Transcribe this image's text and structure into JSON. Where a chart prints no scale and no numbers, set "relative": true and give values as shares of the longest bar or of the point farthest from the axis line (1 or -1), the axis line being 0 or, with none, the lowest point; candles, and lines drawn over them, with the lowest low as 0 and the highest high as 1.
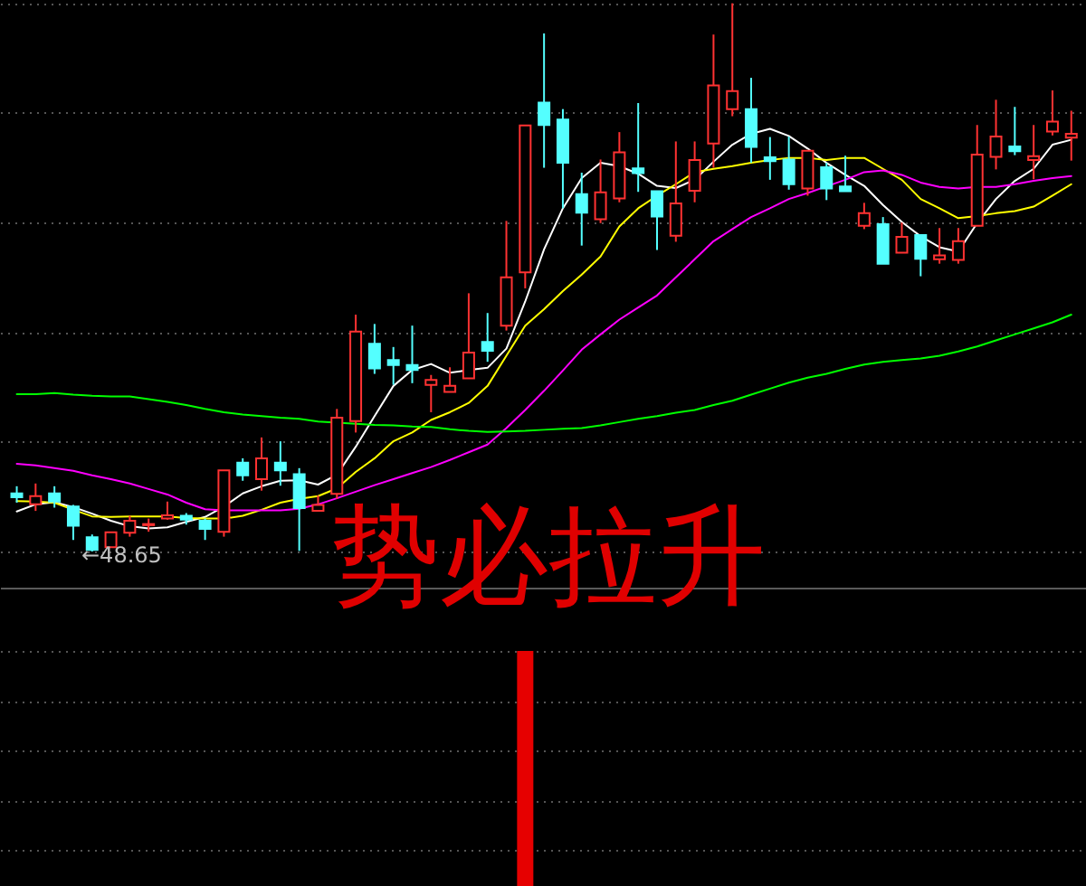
{
  "chart_data": [
    {
      "type": "candlestick",
      "relative": true,
      "grid": "y",
      "categories": [
        null,
        null,
        null,
        null,
        null,
        null,
        null,
        null,
        null,
        null,
        null,
        null,
        null,
        null,
        null,
        null,
        null,
        null,
        null,
        null,
        null,
        null,
        null,
        null,
        null,
        null,
        null,
        null,
        null,
        null,
        null,
        null,
        null,
        null,
        null,
        null,
        null,
        null,
        null,
        null,
        null,
        null,
        null,
        null,
        null,
        null,
        null,
        null,
        null,
        null,
        null,
        null,
        null,
        null,
        null,
        null,
        null
      ],
      "ohlc": [
        [
          0.106,
          0.119,
          0.089,
          0.099
        ],
        [
          0.086,
          0.124,
          0.074,
          0.101
        ],
        [
          0.106,
          0.119,
          0.08,
          0.091
        ],
        [
          0.082,
          0.085,
          0.021,
          0.047
        ],
        [
          0.026,
          0.031,
          0,
          0.003
        ],
        [
          0.008,
          0.035,
          0.008,
          0.035
        ],
        [
          0.034,
          0.065,
          0.027,
          0.056
        ],
        [
          0.048,
          0.06,
          0.036,
          0.05
        ],
        [
          0.06,
          0.091,
          0.058,
          0.066
        ],
        [
          0.065,
          0.07,
          0.049,
          0.058
        ],
        [
          0.056,
          0.06,
          0.021,
          0.041
        ],
        [
          0.036,
          0.148,
          0.027,
          0.148
        ],
        [
          0.162,
          0.17,
          0.129,
          0.139
        ],
        [
          0.132,
          0.208,
          0.111,
          0.17
        ],
        [
          0.162,
          0.201,
          0.12,
          0.148
        ],
        [
          0.141,
          0.152,
          0.001,
          0.079
        ],
        [
          0.074,
          0.102,
          0.074,
          0.085
        ],
        [
          0.105,
          0.26,
          0.096,
          0.244
        ],
        [
          0.238,
          0.432,
          0.217,
          0.401
        ],
        [
          0.379,
          0.415,
          0.324,
          0.334
        ],
        [
          0.349,
          0.373,
          0.304,
          0.34
        ],
        [
          0.34,
          0.412,
          0.307,
          0.331
        ],
        [
          0.304,
          0.322,
          0.254,
          0.313
        ],
        [
          0.291,
          0.336,
          0.291,
          0.302
        ],
        [
          0.316,
          0.471,
          0.316,
          0.363
        ],
        [
          0.382,
          0.435,
          0.346,
          0.366
        ],
        [
          0.412,
          0.603,
          0.403,
          0.5
        ],
        [
          0.509,
          0.777,
          0.48,
          0.777
        ],
        [
          0.819,
          0.945,
          0.7,
          0.778
        ],
        [
          0.788,
          0.807,
          0.626,
          0.709
        ],
        [
          0.652,
          0.691,
          0.558,
          0.618
        ],
        [
          0.606,
          0.715,
          0.599,
          0.655
        ],
        [
          0.644,
          0.765,
          0.637,
          0.728
        ],
        [
          0.699,
          0.818,
          0.656,
          0.69
        ],
        [
          0.657,
          0.657,
          0.55,
          0.611
        ],
        [
          0.576,
          0.748,
          0.565,
          0.635
        ],
        [
          0.658,
          0.748,
          0.637,
          0.714
        ],
        [
          0.744,
          0.943,
          0.7,
          0.85
        ],
        [
          0.807,
          1,
          0.794,
          0.84
        ],
        [
          0.807,
          0.864,
          0.709,
          0.738
        ],
        [
          0.719,
          0.756,
          0.678,
          0.712
        ],
        [
          0.715,
          0.757,
          0.66,
          0.67
        ],
        [
          0.662,
          0.731,
          0.649,
          0.731
        ],
        [
          0.701,
          0.709,
          0.641,
          0.662
        ],
        [
          0.666,
          0.722,
          0.657,
          0.657
        ],
        [
          0.594,
          0.636,
          0.588,
          0.617
        ],
        [
          0.597,
          0.61,
          0.525,
          0.525
        ],
        [
          0.545,
          0.6,
          0.545,
          0.574
        ],
        [
          0.577,
          0.577,
          0.502,
          0.534
        ],
        [
          0.533,
          0.59,
          0.525,
          0.54
        ],
        [
          0.532,
          0.59,
          0.525,
          0.566
        ],
        [
          0.594,
          0.778,
          0.594,
          0.724
        ],
        [
          0.72,
          0.824,
          0.697,
          0.757
        ],
        [
          0.739,
          0.811,
          0.723,
          0.73
        ],
        [
          0.714,
          0.778,
          0.679,
          0.721
        ],
        [
          0.766,
          0.841,
          0.759,
          0.784
        ],
        [
          0.755,
          0.804,
          0.713,
          0.762
        ]
      ],
      "colors": [
        "#54ffff",
        "#ff3232",
        "#54ffff",
        "#54ffff",
        "#54ffff",
        "#ff3232",
        "#ff3232",
        "#ff3232",
        "#ff3232",
        "#54ffff",
        "#54ffff",
        "#ff3232",
        "#54ffff",
        "#ff3232",
        "#54ffff",
        "#54ffff",
        "#ff3232",
        "#ff3232",
        "#ff3232",
        "#54ffff",
        "#54ffff",
        "#54ffff",
        "#ff3232",
        "#ff3232",
        "#ff3232",
        "#54ffff",
        "#ff3232",
        "#ff3232",
        "#54ffff",
        "#54ffff",
        "#54ffff",
        "#ff3232",
        "#ff3232",
        "#54ffff",
        "#54ffff",
        "#ff3232",
        "#ff3232",
        "#ff3232",
        "#ff3232",
        "#54ffff",
        "#54ffff",
        "#54ffff",
        "#ff3232",
        "#54ffff",
        "#54ffff",
        "#ff3232",
        "#54ffff",
        "#ff3232",
        "#54ffff",
        "#ff3232",
        "#ff3232",
        "#ff3232",
        "#ff3232",
        "#54ffff",
        "#ff3232",
        "#ff3232",
        "#ff3232"
      ],
      "series": [
        {
          "type": "line",
          "color": "#ffffff",
          "values": [
            0.073,
            0.086,
            0.09,
            0.081,
            0.069,
            0.056,
            0.046,
            0.042,
            0.044,
            0.054,
            0.063,
            0.082,
            0.106,
            0.119,
            0.129,
            0.13,
            0.122,
            0.14,
            0.191,
            0.247,
            0.302,
            0.331,
            0.342,
            0.326,
            0.331,
            0.335,
            0.37,
            0.456,
            0.551,
            0.626,
            0.681,
            0.709,
            0.703,
            0.689,
            0.667,
            0.663,
            0.678,
            0.711,
            0.742,
            0.762,
            0.771,
            0.758,
            0.735,
            0.709,
            0.687,
            0.667,
            0.632,
            0.601,
            0.575,
            0.555,
            0.547,
            0.599,
            0.643,
            0.676,
            0.698,
            0.742,
            0.751
          ]
        },
        {
          "type": "line",
          "color": "#ffff00",
          "values": [
            0.092,
            0.091,
            0.089,
            0.076,
            0.064,
            0.063,
            0.064,
            0.064,
            0.064,
            0.061,
            0.06,
            0.06,
            0.065,
            0.076,
            0.089,
            0.096,
            0.101,
            0.115,
            0.145,
            0.17,
            0.201,
            0.217,
            0.24,
            0.254,
            0.271,
            0.302,
            0.357,
            0.412,
            0.442,
            0.475,
            0.505,
            0.538,
            0.593,
            0.626,
            0.649,
            0.67,
            0.692,
            0.698,
            0.703,
            0.709,
            0.714,
            0.718,
            0.718,
            0.714,
            0.718,
            0.718,
            0.698,
            0.678,
            0.643,
            0.626,
            0.608,
            0.612,
            0.617,
            0.621,
            0.629,
            0.649,
            0.67
          ]
        },
        {
          "type": "line",
          "color": "#ff00ff",
          "values": [
            0.16,
            0.157,
            0.152,
            0.147,
            0.139,
            0.132,
            0.124,
            0.114,
            0.104,
            0.089,
            0.077,
            0.075,
            0.075,
            0.075,
            0.075,
            0.078,
            0.086,
            0.097,
            0.109,
            0.121,
            0.132,
            0.143,
            0.154,
            0.167,
            0.181,
            0.195,
            0.225,
            0.258,
            0.293,
            0.33,
            0.368,
            0.396,
            0.423,
            0.445,
            0.467,
            0.5,
            0.533,
            0.566,
            0.588,
            0.61,
            0.626,
            0.643,
            0.654,
            0.666,
            0.678,
            0.692,
            0.695,
            0.687,
            0.673,
            0.665,
            0.662,
            0.665,
            0.665,
            0.67,
            0.676,
            0.681,
            0.685
          ]
        },
        {
          "type": "line",
          "color": "#00ff00",
          "values": [
            0.287,
            0.287,
            0.289,
            0.286,
            0.284,
            0.283,
            0.283,
            0.278,
            0.273,
            0.267,
            0.26,
            0.254,
            0.25,
            0.247,
            0.244,
            0.242,
            0.237,
            0.235,
            0.233,
            0.231,
            0.23,
            0.228,
            0.227,
            0.223,
            0.22,
            0.218,
            0.219,
            0.22,
            0.222,
            0.224,
            0.225,
            0.23,
            0.236,
            0.242,
            0.247,
            0.253,
            0.258,
            0.267,
            0.275,
            0.286,
            0.297,
            0.308,
            0.317,
            0.324,
            0.333,
            0.341,
            0.346,
            0.349,
            0.352,
            0.357,
            0.365,
            0.374,
            0.385,
            0.396,
            0.407,
            0.418,
            0.432
          ]
        }
      ],
      "annotations": [
        "势必拉升",
        "←48.65"
      ]
    },
    {
      "type": "bar",
      "relative": true,
      "grid": "y",
      "color": "#e60000",
      "categories": [
        null,
        null,
        null,
        null,
        null,
        null,
        null,
        null,
        null,
        null,
        null,
        null,
        null,
        null,
        null,
        null,
        null,
        null,
        null,
        null,
        null,
        null,
        null,
        null,
        null,
        null,
        null,
        null,
        null,
        null,
        null,
        null,
        null,
        null,
        null,
        null,
        null,
        null,
        null,
        null,
        null,
        null,
        null,
        null,
        null,
        null,
        null,
        null,
        null,
        null,
        null,
        null,
        null,
        null,
        null,
        null,
        null
      ],
      "values": [
        null,
        null,
        null,
        null,
        null,
        null,
        null,
        null,
        null,
        null,
        null,
        null,
        null,
        null,
        null,
        null,
        null,
        null,
        null,
        null,
        null,
        null,
        null,
        null,
        null,
        null,
        null,
        1,
        null,
        null,
        null,
        null,
        null,
        null,
        null,
        null,
        null,
        null,
        null,
        null,
        null,
        null,
        null,
        null,
        null,
        null,
        null,
        null,
        null,
        null,
        null,
        null,
        null,
        null,
        null,
        null,
        null
      ]
    }
  ]
}
